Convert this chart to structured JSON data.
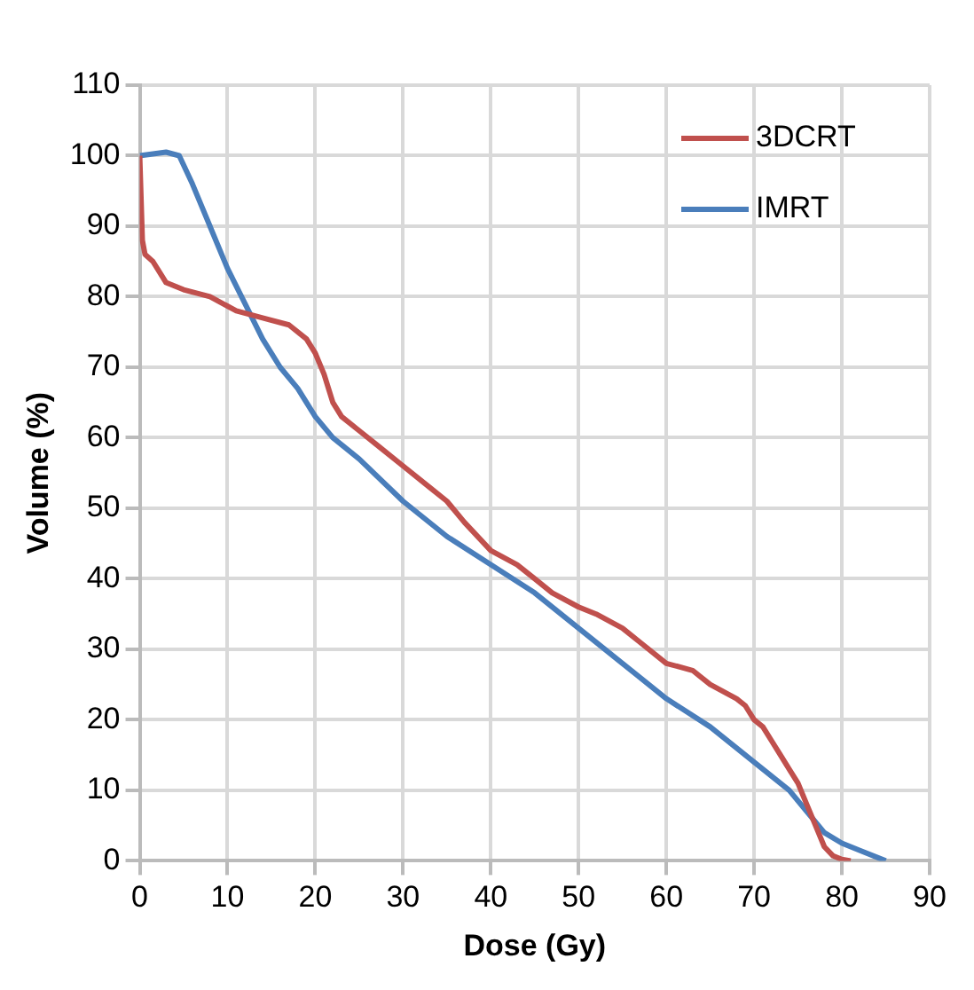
{
  "chart_data": {
    "type": "line",
    "xlabel": "Dose (Gy)",
    "ylabel": "Volume (%)",
    "xlim": [
      0,
      90
    ],
    "xticks": [
      0,
      10,
      20,
      30,
      40,
      50,
      60,
      70,
      80,
      90
    ],
    "ylim": [
      0,
      110
    ],
    "yticks": [
      0,
      10,
      20,
      30,
      40,
      50,
      60,
      70,
      80,
      90,
      100,
      110
    ],
    "grid": true,
    "legend": "top right",
    "marker": "none",
    "line_style": "solid",
    "series": [
      {
        "name": "3DCRT",
        "color": "#c0504d",
        "x": [
          0,
          0.3,
          0.6,
          1.5,
          2.5,
          3,
          5,
          8,
          11,
          14,
          17,
          19,
          20,
          21,
          22,
          23,
          25,
          27,
          30,
          33,
          35,
          37,
          40,
          43,
          45,
          47,
          50,
          52,
          55,
          57,
          60,
          63,
          65,
          68,
          69,
          70,
          71,
          72,
          73,
          74,
          75,
          76,
          77,
          78,
          79,
          80,
          81
        ],
        "values": [
          100,
          88,
          86,
          85,
          83,
          82,
          81,
          80,
          78,
          77,
          76,
          74,
          72,
          69,
          65,
          63,
          61,
          59,
          56,
          53,
          51,
          48,
          44,
          42,
          40,
          38,
          36,
          35,
          33,
          31,
          28,
          27,
          25,
          23,
          22,
          20,
          19,
          17,
          15,
          13,
          11,
          8,
          5,
          2,
          0.7,
          0.2,
          0
        ]
      },
      {
        "name": "IMRT",
        "color": "#4a7ebb",
        "x": [
          0,
          3,
          4.5,
          6,
          8,
          10,
          12,
          14,
          16,
          18,
          20,
          22,
          25,
          30,
          35,
          40,
          45,
          50,
          55,
          60,
          65,
          70,
          74,
          76,
          78,
          80,
          82,
          85
        ],
        "values": [
          100,
          100.5,
          100,
          96,
          90,
          84,
          79,
          74,
          70,
          67,
          63,
          60,
          57,
          51,
          46,
          42,
          38,
          33,
          28,
          23,
          19,
          14,
          10,
          7,
          4,
          2.5,
          1.5,
          0
        ]
      }
    ]
  }
}
